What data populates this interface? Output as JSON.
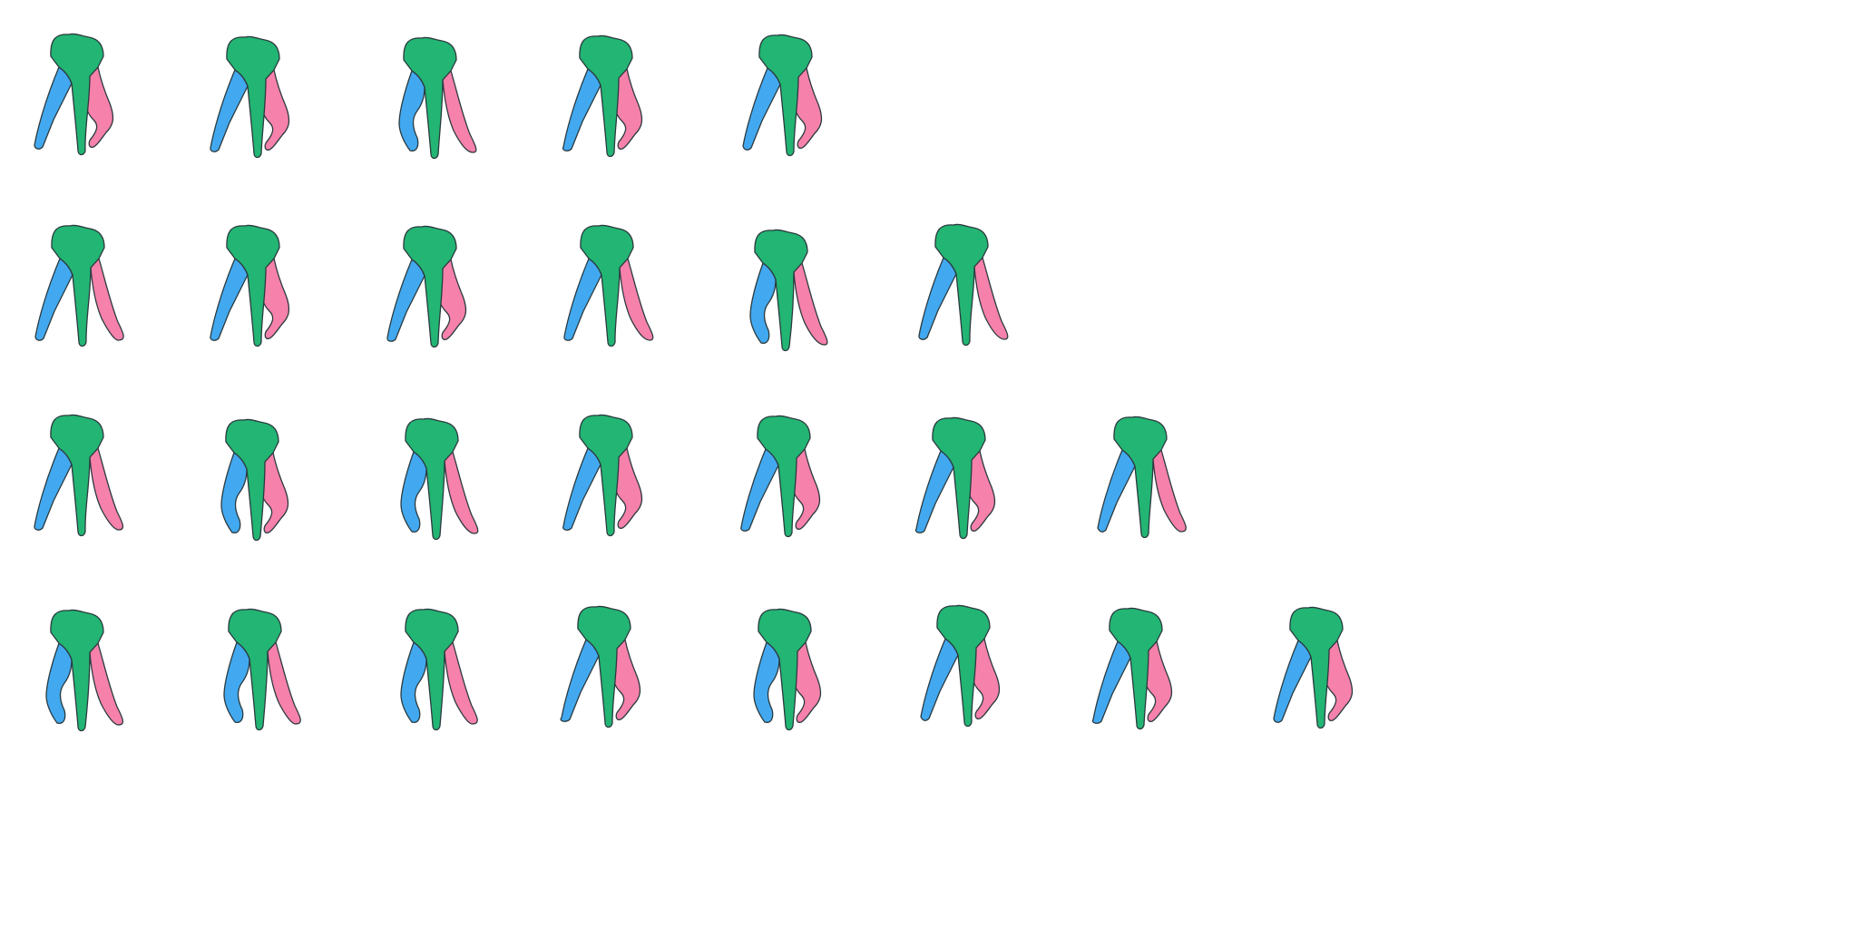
{
  "palette": {
    "crown": "#22b573",
    "left_root": "#42a9f0",
    "right_root": "#f681ab",
    "outline": "#2b3a3f",
    "background": "#ffffff"
  },
  "icon": "tooth-icon",
  "rows": [
    {
      "count": 5
    },
    {
      "count": 6
    },
    {
      "count": 7
    },
    {
      "count": 8
    }
  ]
}
